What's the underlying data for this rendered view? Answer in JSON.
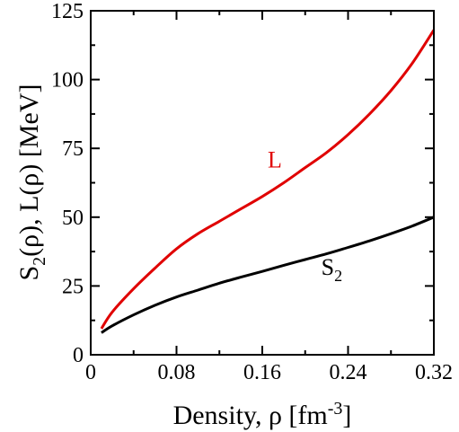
{
  "chart_data": {
    "type": "line",
    "xlabel": "Density, ρ [fm",
    "xlabel_sup": "-3",
    "xlabel_end": "]",
    "ylabel": "S",
    "ylabel_sub": "2",
    "ylabel_rest": "(ρ), L(ρ) [MeV]",
    "xlim": [
      0,
      0.32
    ],
    "ylim": [
      0,
      125
    ],
    "xticks": [
      {
        "value": 0,
        "label": "0"
      },
      {
        "value": 0.08,
        "label": "0.08"
      },
      {
        "value": 0.16,
        "label": "0.16"
      },
      {
        "value": 0.24,
        "label": "0.24"
      },
      {
        "value": 0.32,
        "label": "0.32"
      }
    ],
    "yticks": [
      {
        "value": 0,
        "label": "0"
      },
      {
        "value": 25,
        "label": "25"
      },
      {
        "value": 50,
        "label": "50"
      },
      {
        "value": 75,
        "label": "75"
      },
      {
        "value": 100,
        "label": "100"
      },
      {
        "value": 125,
        "label": "125"
      }
    ],
    "grid": false,
    "series": [
      {
        "name": "L",
        "color": "#e00000",
        "x": [
          0.01,
          0.02,
          0.04,
          0.06,
          0.08,
          0.1,
          0.12,
          0.14,
          0.16,
          0.18,
          0.2,
          0.22,
          0.24,
          0.26,
          0.28,
          0.3,
          0.32
        ],
        "y": [
          9.5,
          15.5,
          24,
          31.5,
          38.5,
          44,
          48.5,
          53,
          57.5,
          62.5,
          68,
          73.5,
          80,
          87.5,
          96,
          106,
          118
        ]
      },
      {
        "name": "S",
        "name_sub": "2",
        "color": "#000000",
        "x": [
          0.01,
          0.02,
          0.04,
          0.06,
          0.08,
          0.1,
          0.12,
          0.14,
          0.16,
          0.18,
          0.2,
          0.22,
          0.24,
          0.26,
          0.28,
          0.3,
          0.32
        ],
        "y": [
          8,
          10.5,
          14.5,
          18,
          21,
          23.5,
          26,
          28.2,
          30.3,
          32.5,
          34.6,
          36.7,
          39,
          41.4,
          44,
          46.8,
          50
        ]
      }
    ],
    "annotations": [
      {
        "series": "L",
        "text": "L",
        "x": 0.165,
        "y": 68
      },
      {
        "series": "S",
        "text": "S",
        "sub": "2",
        "x": 0.215,
        "y": 29
      }
    ]
  }
}
